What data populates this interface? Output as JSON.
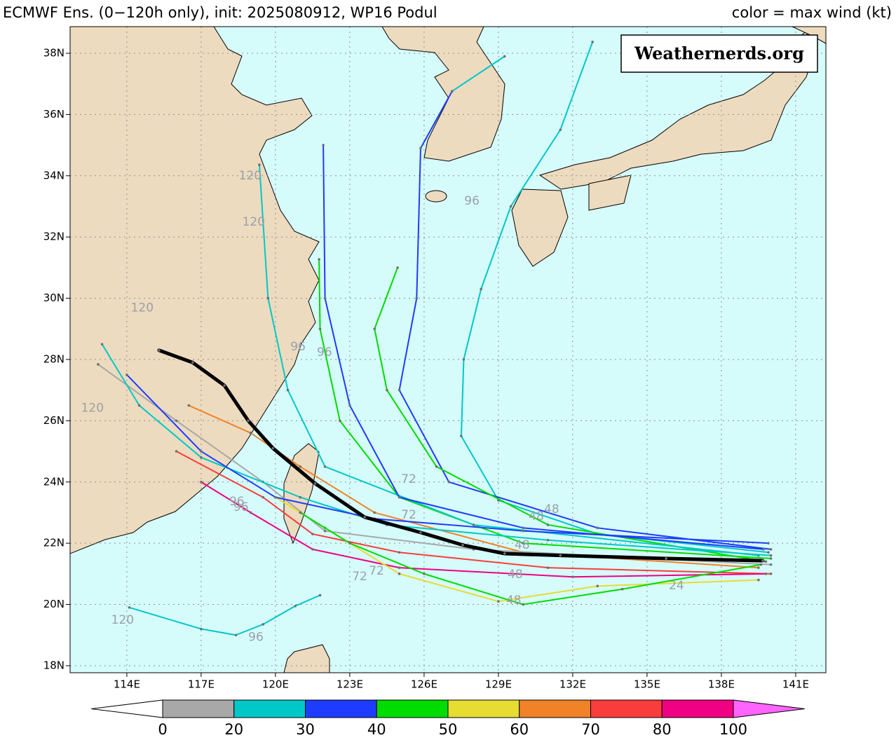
{
  "header": {
    "title": "ECMWF Ens. (0−120h only), init: 2025080912, WP16 Podul",
    "legend_note": "color = max wind (kt)"
  },
  "watermark": "Weathernerds.org",
  "map": {
    "lonlim": [
      111.71,
      142.22
    ],
    "latlim": [
      17.77,
      38.87
    ],
    "lon_ticks": [
      {
        "value": 114,
        "label": "114E"
      },
      {
        "value": 117,
        "label": "117E"
      },
      {
        "value": 120,
        "label": "120E"
      },
      {
        "value": 123,
        "label": "123E"
      },
      {
        "value": 126,
        "label": "126E"
      },
      {
        "value": 129,
        "label": "129E"
      },
      {
        "value": 132,
        "label": "132E"
      },
      {
        "value": 135,
        "label": "135E"
      },
      {
        "value": 138,
        "label": "138E"
      },
      {
        "value": 141,
        "label": "141E"
      }
    ],
    "lat_ticks": [
      {
        "value": 18,
        "label": "18N"
      },
      {
        "value": 20,
        "label": "20N"
      },
      {
        "value": 22,
        "label": "22N"
      },
      {
        "value": 24,
        "label": "24N"
      },
      {
        "value": 26,
        "label": "26N"
      },
      {
        "value": 28,
        "label": "28N"
      },
      {
        "value": 30,
        "label": "30N"
      },
      {
        "value": 32,
        "label": "32N"
      },
      {
        "value": 34,
        "label": "34N"
      },
      {
        "value": 36,
        "label": "36N"
      },
      {
        "value": 38,
        "label": "38N"
      }
    ],
    "grid": true,
    "tracks": [
      {
        "color": "#00c8c8",
        "points": [
          [
            139.9,
            21.7
          ],
          [
            133,
            22.3
          ],
          [
            129,
            23.4
          ],
          [
            127.5,
            25.5
          ],
          [
            127.6,
            28
          ],
          [
            128.3,
            30.3
          ],
          [
            129.5,
            33
          ],
          [
            131.5,
            35.5
          ],
          [
            132.8,
            38.37
          ]
        ]
      },
      {
        "color": "#1e3cff",
        "points": [
          [
            140,
            21.8
          ],
          [
            133,
            22.5
          ],
          [
            127,
            24
          ],
          [
            125,
            27
          ],
          [
            125.7,
            30
          ],
          [
            125.86,
            34.9
          ],
          [
            127.13,
            36.76
          ]
        ]
      },
      {
        "color": "#00c8c8",
        "points": [
          [
            127.13,
            36.76
          ],
          [
            129.25,
            37.9
          ]
        ]
      },
      {
        "color": "#00dc00",
        "points": [
          [
            139.8,
            21.4
          ],
          [
            131,
            22.6
          ],
          [
            126.5,
            24.5
          ],
          [
            124.5,
            27
          ],
          [
            124,
            29
          ],
          [
            124.93,
            31
          ]
        ]
      },
      {
        "color": "#00dc00",
        "points": [
          [
            140,
            21.5
          ],
          [
            130,
            22
          ],
          [
            125,
            23.5
          ],
          [
            122.6,
            26
          ],
          [
            121.8,
            29
          ],
          [
            121.76,
            31.27
          ]
        ]
      },
      {
        "color": "#00c8c8",
        "points": [
          [
            139.5,
            21.6
          ],
          [
            128,
            22.6
          ],
          [
            122,
            24.5
          ],
          [
            120.5,
            27
          ],
          [
            119.7,
            30
          ],
          [
            119.35,
            34.36
          ]
        ]
      },
      {
        "color": "#1e3cff",
        "points": [
          [
            139.7,
            21.8
          ],
          [
            130,
            22.5
          ],
          [
            125,
            23.5
          ],
          [
            123,
            26.5
          ],
          [
            122,
            30
          ],
          [
            121.93,
            35
          ]
        ]
      },
      {
        "color": "#f08228",
        "points": [
          [
            139.5,
            21.2
          ],
          [
            130,
            21.7
          ],
          [
            124,
            23
          ],
          [
            121,
            24.5
          ],
          [
            119,
            25.6
          ],
          [
            116.5,
            26.5
          ]
        ]
      },
      {
        "color": "#fa3c3c",
        "points": [
          [
            140,
            21
          ],
          [
            131,
            21.2
          ],
          [
            125,
            21.7
          ],
          [
            121.5,
            22.3
          ],
          [
            119.5,
            23.5
          ],
          [
            116,
            25
          ]
        ]
      },
      {
        "color": "#f00082",
        "points": [
          [
            139.8,
            21
          ],
          [
            132,
            20.9
          ],
          [
            125,
            21.2
          ],
          [
            121.5,
            21.8
          ],
          [
            119,
            23
          ],
          [
            117,
            24
          ]
        ]
      },
      {
        "color": "#a8a8a8",
        "points": [
          [
            140,
            21.3
          ],
          [
            128,
            21.8
          ],
          [
            122,
            22.4
          ],
          [
            119.5,
            24
          ],
          [
            116,
            26
          ],
          [
            112.84,
            27.84
          ]
        ]
      },
      {
        "color": "#00c8c8",
        "points": [
          [
            121.8,
            20.3
          ],
          [
            120.8,
            19.95
          ],
          [
            119.5,
            19.35
          ],
          [
            118.4,
            19
          ],
          [
            117,
            19.2
          ],
          [
            114.1,
            19.9
          ]
        ]
      },
      {
        "color": "#e6dc32",
        "points": [
          [
            139.5,
            20.8
          ],
          [
            133,
            20.6
          ],
          [
            129,
            20.1
          ],
          [
            125,
            21
          ],
          [
            122,
            22.5
          ],
          [
            120,
            23.5
          ]
        ]
      },
      {
        "color": "#00dc00",
        "points": [
          [
            139.6,
            21.3
          ],
          [
            134,
            20.5
          ],
          [
            130,
            20
          ],
          [
            126,
            21
          ],
          [
            123,
            22
          ],
          [
            121,
            23
          ]
        ]
      },
      {
        "color": "#00c8c8",
        "points": [
          [
            140,
            21.6
          ],
          [
            131,
            22.1
          ],
          [
            124.5,
            22.6
          ],
          [
            121,
            23.5
          ],
          [
            117,
            24.8
          ],
          [
            114.5,
            26.5
          ],
          [
            113,
            28.5
          ]
        ]
      },
      {
        "color": "#1e3cff",
        "points": [
          [
            139.9,
            22
          ],
          [
            130,
            22.4
          ],
          [
            124,
            22.8
          ],
          [
            120,
            23.5
          ],
          [
            117,
            25
          ],
          [
            114,
            27.5
          ]
        ]
      }
    ],
    "mean_track": {
      "color": "#000000",
      "points": [
        [
          139.67,
          21.43
        ],
        [
          135.77,
          21.5
        ],
        [
          131.5,
          21.6
        ],
        [
          129.25,
          21.66
        ],
        [
          127.56,
          21.94
        ],
        [
          125.86,
          22.35
        ],
        [
          123.6,
          22.85
        ],
        [
          121.6,
          23.95
        ],
        [
          119.9,
          25.1
        ],
        [
          118.9,
          26
        ],
        [
          117.94,
          27.15
        ],
        [
          116.66,
          27.9
        ],
        [
          115.3,
          28.3
        ]
      ]
    },
    "hour_labels": [
      {
        "text": "120",
        "lon": 118.98,
        "lat": 34.0
      },
      {
        "text": "120",
        "lon": 119.12,
        "lat": 32.49
      },
      {
        "text": "120",
        "lon": 114.62,
        "lat": 29.68
      },
      {
        "text": "120",
        "lon": 112.61,
        "lat": 26.41
      },
      {
        "text": "120",
        "lon": 113.83,
        "lat": 19.49
      },
      {
        "text": "96",
        "lon": 120.91,
        "lat": 28.41
      },
      {
        "text": "96",
        "lon": 121.98,
        "lat": 28.23
      },
      {
        "text": "96",
        "lon": 118.44,
        "lat": 23.35
      },
      {
        "text": "96",
        "lon": 118.61,
        "lat": 23.17
      },
      {
        "text": "96",
        "lon": 119.21,
        "lat": 18.92
      },
      {
        "text": "96",
        "lon": 127.93,
        "lat": 33.17
      },
      {
        "text": "72",
        "lon": 125.38,
        "lat": 24.09
      },
      {
        "text": "72",
        "lon": 125.38,
        "lat": 22.92
      },
      {
        "text": "72",
        "lon": 123.4,
        "lat": 20.91
      },
      {
        "text": "72",
        "lon": 124.08,
        "lat": 21.09
      },
      {
        "text": "48",
        "lon": 130.53,
        "lat": 22.87
      },
      {
        "text": "48",
        "lon": 131.15,
        "lat": 23.1
      },
      {
        "text": "48",
        "lon": 129.62,
        "lat": 20.13
      },
      {
        "text": "48",
        "lon": 129.68,
        "lat": 20.97
      },
      {
        "text": "48",
        "lon": 129.96,
        "lat": 21.94
      },
      {
        "text": "24",
        "lon": 136.19,
        "lat": 20.61
      }
    ]
  },
  "colorbar": {
    "bounds": [
      0,
      20,
      30,
      40,
      50,
      60,
      70,
      80,
      100
    ],
    "colors": [
      "#a8a8a8",
      "#00c8c8",
      "#1e3cff",
      "#00dc00",
      "#e6dc32",
      "#f08228",
      "#fa3c3c",
      "#f00082"
    ],
    "under_color": "#ffffff",
    "over_color": "#ff64ff"
  }
}
